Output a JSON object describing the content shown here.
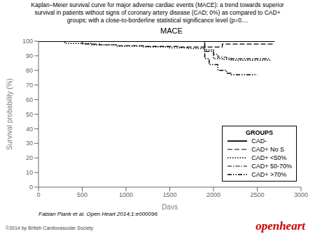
{
  "chart_data": {
    "type": "line",
    "title": "MACE",
    "subtitle": "Kaplan–Meier survival curve for major adverse cardiac events (MACE): a trend towards superior\nsurvival in patients without signs of coronary artery disease (CAD; 0%) as compared to CAD+\ngroups; with a close-to-borderline statistical significance level (p=0....",
    "x_label": "Days",
    "y_label": "Survival probability (%)",
    "xlim": [
      0,
      3000
    ],
    "ylim": [
      0,
      100
    ],
    "xticks": [
      0,
      500,
      1000,
      1500,
      2000,
      2500,
      3000
    ],
    "yticks": [
      0,
      10,
      20,
      30,
      40,
      50,
      60,
      70,
      80,
      90,
      100
    ],
    "grid": false,
    "legend": "lower right",
    "legend_title": "GROUPS",
    "series": [
      {
        "name": "CAD-",
        "color": "#000000",
        "line_style": "solid",
        "x": [
          0,
          2700
        ],
        "values": [
          100,
          100
        ]
      },
      {
        "name": "CAD+ No S",
        "color": "#000000",
        "line_style": "dashed",
        "x": [
          0,
          500,
          500,
          700,
          700,
          900,
          900,
          1200,
          1200,
          1600,
          1600,
          1900,
          1900,
          2100,
          2100,
          2600,
          2600,
          2700
        ],
        "values": [
          100,
          100,
          98,
          98,
          97.5,
          97.5,
          97,
          97,
          96.5,
          96.5,
          96,
          96,
          96,
          96,
          98,
          98,
          98,
          98
        ]
      },
      {
        "name": "CAD+ <50%",
        "color": "#000000",
        "line_style": "dotted",
        "x": [
          0,
          300,
          300,
          600,
          600,
          900,
          900,
          1200,
          1200,
          1500,
          1500,
          1700,
          1700,
          1900,
          1900,
          2000,
          2000,
          2100,
          2100,
          2200,
          2200,
          2500,
          2500,
          2650
        ],
        "values": [
          100,
          100,
          98.5,
          98.5,
          97.5,
          97.5,
          96.5,
          96.5,
          96,
          96,
          95.5,
          95.5,
          95,
          95,
          94,
          94,
          88,
          88,
          87.5,
          87.5,
          87,
          87,
          87,
          87
        ]
      },
      {
        "name": "CAD+ 50-70%",
        "color": "#000000",
        "line_style": "dashdot",
        "x": [
          0,
          1900,
          1900,
          2000,
          2000,
          2050,
          2050,
          2150,
          2150,
          2200,
          2200,
          2250,
          2250,
          2650
        ],
        "values": [
          100,
          100,
          93,
          93,
          91,
          91,
          89,
          89,
          88.5,
          88.5,
          88,
          88,
          88,
          88
        ]
      },
      {
        "name": "CAD+ >70%",
        "color": "#000000",
        "line_style": "dashdotdot",
        "x": [
          0,
          1900,
          1900,
          1950,
          1950,
          2050,
          2050,
          2150,
          2150,
          2200,
          2200,
          2250,
          2250,
          2500
        ],
        "values": [
          100,
          100,
          88,
          88,
          84,
          84,
          80,
          80,
          78,
          78,
          77,
          77,
          77,
          77
        ]
      }
    ],
    "annotations": [
      {
        "text": "Fabian Plank et al. Open Heart 2014;1:e000096",
        "color": "#000000"
      },
      {
        "text": "©2014 by British Cardiovascular Society",
        "color": "#444444"
      },
      {
        "text": "openheart",
        "color": "#cc0000"
      }
    ]
  }
}
